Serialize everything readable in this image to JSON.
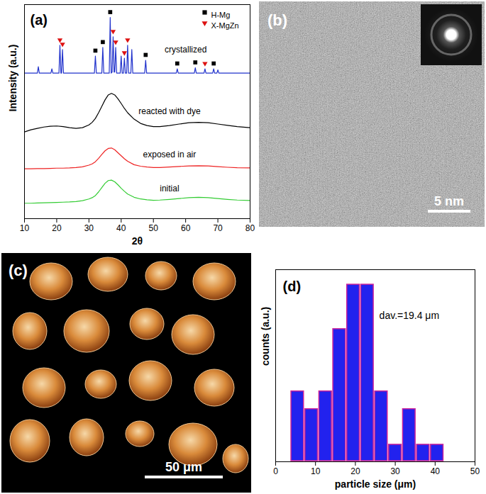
{
  "chart_data": [
    {
      "type": "line",
      "panel_label": "(a)",
      "xlabel": "2θ",
      "ylabel": "Intensity (a.u.)",
      "xlim": [
        10,
        80
      ],
      "xticks": [
        10,
        20,
        30,
        40,
        50,
        60,
        70,
        80
      ],
      "ylim": [
        0,
        10
      ],
      "tick_labels": "x",
      "legend": "top-right",
      "series": [
        {
          "name": "initial",
          "color": "#33cc33",
          "label_x": 55,
          "label_y": 1.4,
          "x": [
            10,
            12,
            14,
            16,
            18,
            20,
            22,
            24,
            26,
            28,
            30,
            31,
            32,
            33,
            34,
            35,
            36,
            37,
            38,
            39,
            40,
            41,
            42,
            44,
            46,
            48,
            50,
            52,
            55,
            58,
            61,
            64,
            67,
            70,
            73,
            76,
            80
          ],
          "values": [
            0.72,
            0.72,
            0.73,
            0.74,
            0.75,
            0.76,
            0.77,
            0.78,
            0.8,
            0.84,
            0.92,
            0.98,
            1.08,
            1.25,
            1.45,
            1.65,
            1.78,
            1.8,
            1.72,
            1.58,
            1.42,
            1.28,
            1.15,
            1.0,
            0.92,
            0.88,
            0.86,
            0.87,
            0.9,
            0.94,
            0.98,
            1.0,
            0.98,
            0.94,
            0.9,
            0.87,
            0.85
          ]
        },
        {
          "name": "exposed in air",
          "color": "#ee2222",
          "label_x": 55,
          "label_y": 3.0,
          "x": [
            10,
            12,
            14,
            16,
            18,
            20,
            22,
            24,
            26,
            28,
            30,
            31,
            32,
            33,
            34,
            35,
            36,
            37,
            38,
            39,
            40,
            41,
            42,
            44,
            46,
            48,
            50,
            52,
            55,
            58,
            61,
            64,
            67,
            70,
            73,
            76,
            80
          ],
          "values": [
            2.33,
            2.33,
            2.34,
            2.34,
            2.35,
            2.36,
            2.36,
            2.37,
            2.39,
            2.42,
            2.5,
            2.56,
            2.66,
            2.82,
            3.0,
            3.17,
            3.28,
            3.3,
            3.22,
            3.08,
            2.94,
            2.8,
            2.68,
            2.52,
            2.45,
            2.41,
            2.39,
            2.39,
            2.41,
            2.44,
            2.46,
            2.47,
            2.46,
            2.43,
            2.4,
            2.38,
            2.37
          ]
        },
        {
          "name": "reacted with dye",
          "color": "#000000",
          "label_x": 55,
          "label_y": 5.0,
          "x": [
            10,
            12,
            14,
            16,
            18,
            20,
            22,
            24,
            26,
            28,
            30,
            31,
            32,
            33,
            34,
            35,
            36,
            37,
            38,
            39,
            40,
            41,
            42,
            44,
            46,
            48,
            50,
            52,
            55,
            58,
            61,
            64,
            67,
            70,
            73,
            76,
            80
          ],
          "values": [
            4.05,
            4.15,
            4.22,
            4.28,
            4.32,
            4.33,
            4.3,
            4.25,
            4.22,
            4.25,
            4.38,
            4.5,
            4.68,
            4.95,
            5.25,
            5.55,
            5.78,
            5.85,
            5.78,
            5.6,
            5.38,
            5.15,
            4.95,
            4.65,
            4.45,
            4.35,
            4.3,
            4.3,
            4.35,
            4.42,
            4.48,
            4.5,
            4.48,
            4.42,
            4.36,
            4.3,
            4.25
          ]
        },
        {
          "name": "crystallized",
          "color": "#2233cc",
          "label_x": 60,
          "label_y": 7.9,
          "x": [
            10,
            14,
            14.3,
            14.6,
            18.2,
            18.5,
            18.8,
            20.7,
            21,
            21.3,
            21.5,
            21.8,
            22.1,
            31.7,
            32,
            32.3,
            34,
            34.3,
            34.6,
            36.3,
            36.6,
            36.9,
            37.2,
            37.5,
            37.8,
            38.0,
            38.3,
            38.6,
            39.7,
            40,
            40.3,
            40.7,
            41,
            41.3,
            41.7,
            42,
            42.3,
            43,
            43.3,
            43.6,
            47.3,
            47.6,
            47.9,
            57.1,
            57.4,
            57.7,
            62.7,
            63,
            63.3,
            65.7,
            66,
            66.3,
            68.4,
            68.7,
            69,
            69.7,
            70,
            70.3,
            80
          ],
          "values": [
            6.8,
            6.8,
            7.1,
            6.8,
            6.8,
            7.0,
            6.8,
            6.8,
            8.1,
            6.8,
            6.8,
            7.9,
            6.8,
            6.8,
            7.6,
            6.8,
            6.8,
            8.0,
            6.8,
            6.8,
            9.4,
            6.8,
            6.85,
            8.5,
            6.85,
            6.85,
            8.0,
            6.8,
            6.8,
            7.6,
            6.8,
            6.8,
            7.5,
            6.8,
            6.8,
            8.1,
            6.8,
            6.8,
            7.9,
            6.8,
            6.8,
            7.4,
            6.8,
            6.8,
            7.0,
            6.8,
            6.8,
            7.05,
            6.8,
            6.8,
            7.0,
            6.8,
            6.8,
            7.0,
            6.8,
            6.8,
            6.95,
            6.8,
            6.8
          ]
        }
      ],
      "markers": [
        {
          "name": "H-Mg",
          "color": "#000000",
          "marker": "square",
          "x": [
            32,
            34.3,
            36.6,
            47.6,
            57.4,
            63,
            68.7
          ],
          "y": [
            7.85,
            8.25,
            9.65,
            7.65,
            7.25,
            7.3,
            7.25
          ]
        },
        {
          "name": "X-MgZn",
          "color": "#dd1111",
          "marker": "triangle-down",
          "x": [
            21,
            21.8,
            37.5,
            38.3,
            41,
            42,
            66
          ],
          "y": [
            8.35,
            8.15,
            8.75,
            8.25,
            7.75,
            8.35,
            7.25
          ]
        }
      ]
    },
    {
      "type": "image",
      "panel_label": "(b)",
      "scale_bar": "5 nm"
    },
    {
      "type": "image",
      "panel_label": "(c)",
      "scale_bar": "50 μm"
    },
    {
      "type": "histogram",
      "panel_label": "(d)",
      "xlabel": "particle size (μm)",
      "ylabel": "counts (a.u.)",
      "xlim": [
        0,
        50
      ],
      "xticks": [
        0,
        10,
        20,
        30,
        40,
        50
      ],
      "ylim": [
        0,
        10.8
      ],
      "tick_labels": "x",
      "color": "#2222ee",
      "bins": [
        3.75,
        7.25,
        10.75,
        14.25,
        17.75,
        21.25,
        24.75,
        28.25,
        31.75,
        35.25,
        38.75,
        42.25
      ],
      "counts": [
        4,
        3,
        4,
        7.5,
        10,
        10,
        4,
        1,
        3,
        1,
        1
      ],
      "annotations": [
        {
          "text": "dav.=19.4 μm",
          "x": 26,
          "y": 8.2
        }
      ]
    }
  ]
}
